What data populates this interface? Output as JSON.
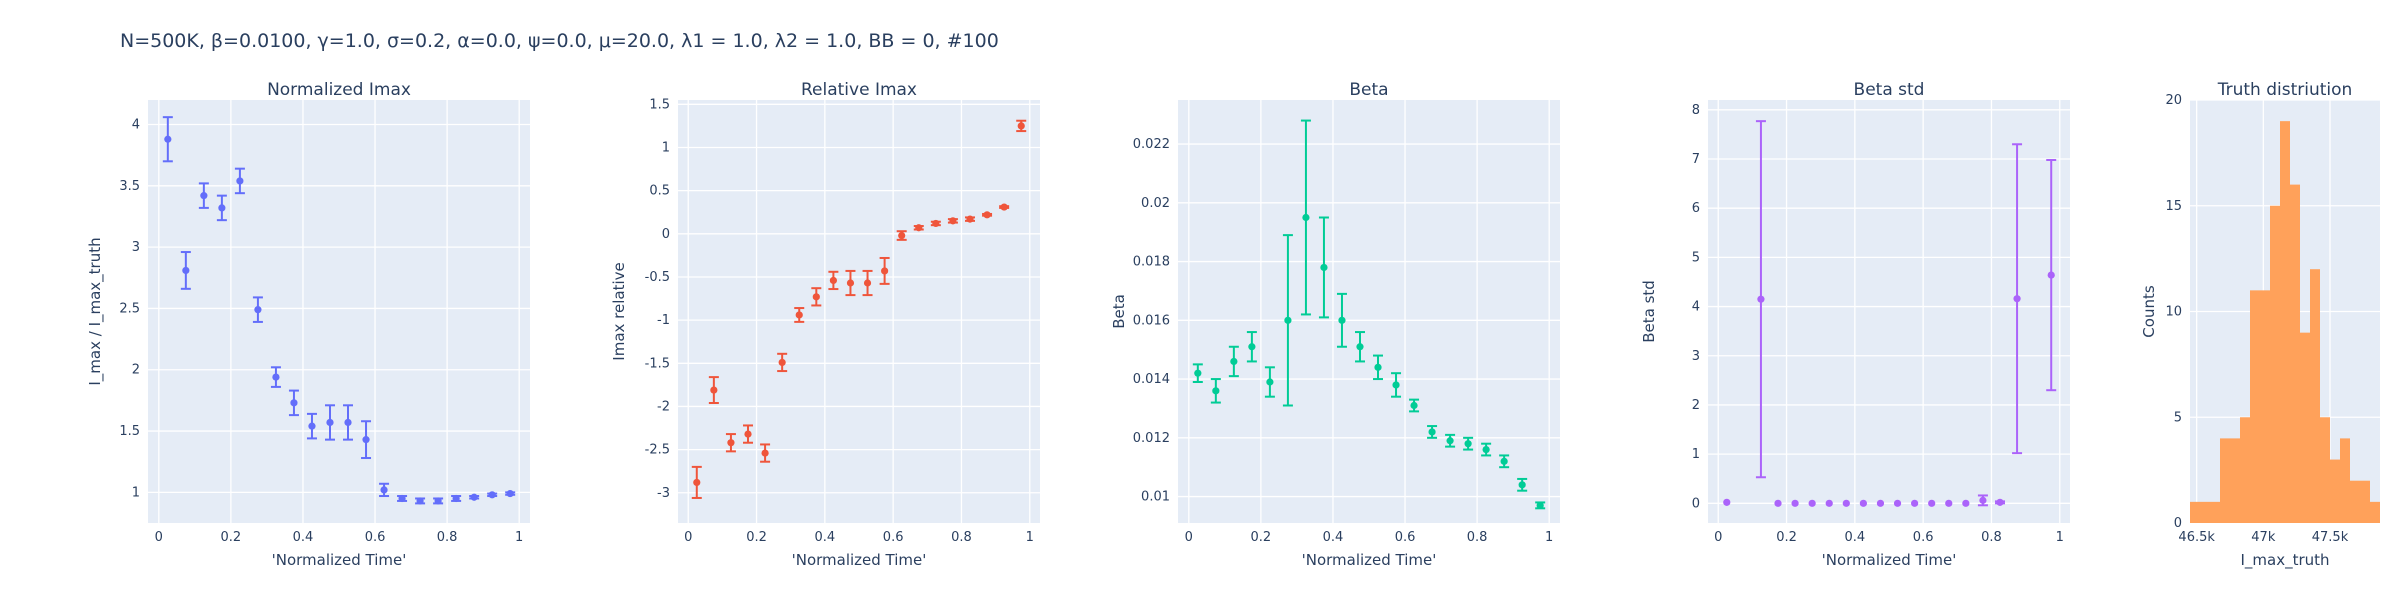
{
  "figure_title": "N=500K, β=0.0100, γ=1.0, σ=0.2,  α=0.0, ψ=0.0, μ=20.0, λ1 = 1.0, λ2 = 1.0, BB = 0, #100",
  "chart_data": [
    {
      "type": "scatter",
      "title": "Normalized Imax",
      "xlabel": "'Normalized Time'",
      "ylabel": "I_max / I_max_truth",
      "xlim": [
        -0.03,
        1.03
      ],
      "ylim": [
        0.75,
        4.2
      ],
      "xticks": [
        0,
        0.2,
        0.4,
        0.6,
        0.8,
        1
      ],
      "yticks": [
        1,
        1.5,
        2,
        2.5,
        3,
        3.5,
        4
      ],
      "grid": true,
      "color": "#636efa",
      "x": [
        0.025,
        0.075,
        0.125,
        0.175,
        0.225,
        0.275,
        0.325,
        0.375,
        0.425,
        0.475,
        0.525,
        0.575,
        0.625,
        0.675,
        0.725,
        0.775,
        0.825,
        0.875,
        0.925,
        0.975
      ],
      "y": [
        3.88,
        2.81,
        3.42,
        3.32,
        3.54,
        2.49,
        1.94,
        1.73,
        1.54,
        1.57,
        1.57,
        1.43,
        1.02,
        0.95,
        0.93,
        0.93,
        0.95,
        0.96,
        0.98,
        0.99
      ],
      "error": [
        0.18,
        0.15,
        0.1,
        0.1,
        0.1,
        0.1,
        0.08,
        0.1,
        0.1,
        0.14,
        0.14,
        0.15,
        0.05,
        0.02,
        0.02,
        0.02,
        0.02,
        0.01,
        0.01,
        0.01
      ]
    },
    {
      "type": "scatter",
      "title": "Relative Imax",
      "xlabel": "'Normalized Time'",
      "ylabel": "Imax relative",
      "xlim": [
        -0.03,
        1.03
      ],
      "ylim": [
        -3.35,
        1.55
      ],
      "xticks": [
        0,
        0.2,
        0.4,
        0.6,
        0.8,
        1
      ],
      "yticks": [
        -3,
        -2.5,
        -2,
        -1.5,
        -1,
        -0.5,
        0,
        0.5,
        1,
        1.5
      ],
      "grid": true,
      "color": "#ef553b",
      "x": [
        0.025,
        0.075,
        0.125,
        0.175,
        0.225,
        0.275,
        0.325,
        0.375,
        0.425,
        0.475,
        0.525,
        0.575,
        0.625,
        0.675,
        0.725,
        0.775,
        0.825,
        0.875,
        0.925,
        0.975
      ],
      "y": [
        -2.88,
        -1.81,
        -2.42,
        -2.32,
        -2.54,
        -1.49,
        -0.94,
        -0.73,
        -0.54,
        -0.57,
        -0.57,
        -0.43,
        -0.02,
        0.07,
        0.12,
        0.15,
        0.17,
        0.22,
        0.31,
        1.25
      ],
      "error": [
        0.18,
        0.15,
        0.1,
        0.1,
        0.1,
        0.1,
        0.08,
        0.1,
        0.1,
        0.14,
        0.14,
        0.15,
        0.05,
        0.02,
        0.02,
        0.02,
        0.02,
        0.01,
        0.01,
        0.06
      ]
    },
    {
      "type": "scatter",
      "title": "Beta",
      "xlabel": "'Normalized Time'",
      "ylabel": "Beta",
      "xlim": [
        -0.03,
        1.03
      ],
      "ylim": [
        0.0091,
        0.0235
      ],
      "xticks": [
        0,
        0.2,
        0.4,
        0.6,
        0.8,
        1
      ],
      "yticks": [
        0.01,
        0.012,
        0.014,
        0.016,
        0.018,
        0.02,
        0.022
      ],
      "grid": true,
      "color": "#00cc96",
      "x": [
        0.025,
        0.075,
        0.125,
        0.175,
        0.225,
        0.275,
        0.325,
        0.375,
        0.425,
        0.475,
        0.525,
        0.575,
        0.625,
        0.675,
        0.725,
        0.775,
        0.825,
        0.875,
        0.925,
        0.975
      ],
      "y": [
        0.0142,
        0.0136,
        0.0146,
        0.0151,
        0.0139,
        0.016,
        0.0195,
        0.0178,
        0.016,
        0.0151,
        0.0144,
        0.0138,
        0.0131,
        0.0122,
        0.0119,
        0.0118,
        0.0116,
        0.0112,
        0.0104,
        0.0097
      ],
      "error": [
        0.0003,
        0.0004,
        0.0005,
        0.0005,
        0.0005,
        0.0029,
        0.0033,
        0.0017,
        0.0009,
        0.0005,
        0.0004,
        0.0004,
        0.0002,
        0.0002,
        0.0002,
        0.0002,
        0.0002,
        0.0002,
        0.0002,
        0.0001
      ]
    },
    {
      "type": "scatter",
      "title": "Beta std",
      "xlabel": "'Normalized Time'",
      "ylabel": "Beta std",
      "xlim": [
        -0.03,
        1.03
      ],
      "ylim": [
        -0.4,
        8.2
      ],
      "xticks": [
        0,
        0.2,
        0.4,
        0.6,
        0.8,
        1
      ],
      "yticks": [
        0,
        1,
        2,
        3,
        4,
        5,
        6,
        7,
        8
      ],
      "grid": true,
      "color": "#ab63fa",
      "x": [
        0.025,
        0.125,
        0.175,
        0.225,
        0.275,
        0.325,
        0.375,
        0.425,
        0.475,
        0.525,
        0.575,
        0.625,
        0.675,
        0.725,
        0.775,
        0.825,
        0.875,
        0.975
      ],
      "y": [
        0.02,
        4.15,
        0.0,
        0.0,
        0.0,
        0.0,
        0.0,
        0.0,
        0.0,
        0.0,
        0.0,
        0.0,
        0.0,
        0.0,
        0.06,
        0.02,
        4.16,
        4.64
      ],
      "error": [
        0.0,
        3.62,
        0.0,
        0.0,
        0.0,
        0.0,
        0.0,
        0.0,
        0.0,
        0.0,
        0.0,
        0.0,
        0.0,
        0.0,
        0.1,
        0.02,
        3.14,
        2.34
      ]
    },
    {
      "type": "bar",
      "title": "Truth distriution",
      "xlabel": "I_max_truth",
      "ylabel": "Counts",
      "xlim": [
        46450,
        47875
      ],
      "ylim": [
        0,
        20
      ],
      "xticks": [
        46500,
        47000,
        47500
      ],
      "xtick_labels": [
        "46.5k",
        "47k",
        "47.5k"
      ],
      "yticks": [
        0,
        5,
        10,
        15,
        20
      ],
      "grid": true,
      "color": "#ffa15a",
      "bin_width": 75,
      "bins_start": [
        46450,
        46525,
        46600,
        46675,
        46750,
        46825,
        46900,
        46975,
        47050,
        47125,
        47200,
        47275,
        47350,
        47425,
        47500,
        47575,
        47650,
        47725,
        47800
      ],
      "values": [
        1,
        1,
        1,
        4,
        4,
        5,
        11,
        11,
        15,
        19,
        16,
        9,
        12,
        5,
        3,
        4,
        2,
        2,
        1
      ]
    }
  ]
}
